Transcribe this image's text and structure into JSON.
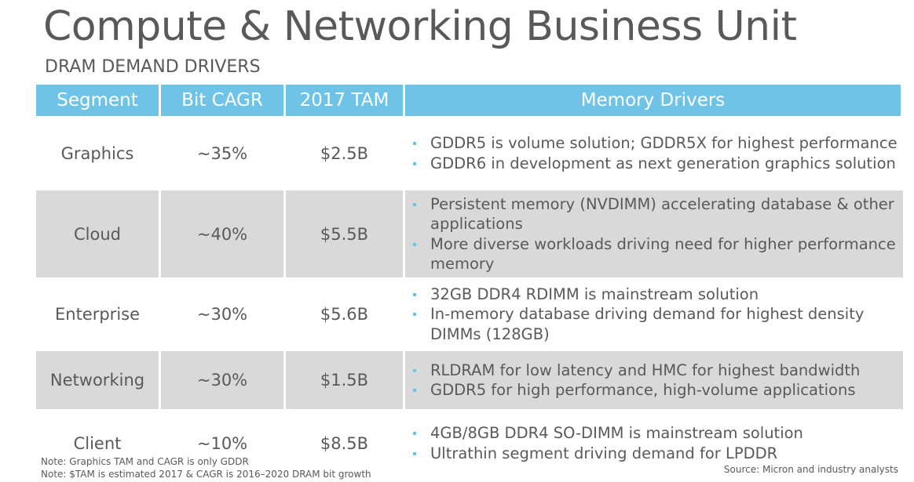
{
  "header": {
    "title": "Compute & Networking Business Unit",
    "subtitle": "DRAM DEMAND DRIVERS"
  },
  "table": {
    "columns": [
      "Segment",
      "Bit CAGR",
      "2017 TAM",
      "Memory Drivers"
    ],
    "rows": [
      {
        "segment": "Graphics",
        "cagr": "~35%",
        "tam": "$2.5B",
        "drivers": [
          "GDDR5 is volume solution; GDDR5X for highest performance",
          "GDDR6 in development as next generation graphics solution"
        ]
      },
      {
        "segment": "Cloud",
        "cagr": "~40%",
        "tam": "$5.5B",
        "drivers": [
          "Persistent memory (NVDIMM) accelerating database & other applications",
          "More diverse workloads driving need for higher performance memory"
        ]
      },
      {
        "segment": "Enterprise",
        "cagr": "~30%",
        "tam": "$5.6B",
        "drivers": [
          "32GB DDR4 RDIMM is mainstream solution",
          "In-memory database driving demand for highest density DIMMs (128GB)"
        ]
      },
      {
        "segment": "Networking",
        "cagr": "~30%",
        "tam": "$1.5B",
        "drivers": [
          "RLDRAM for low latency and HMC for highest bandwidth",
          "GDDR5 for high performance, high-volume applications"
        ]
      },
      {
        "segment": "Client",
        "cagr": "~10%",
        "tam": "$8.5B",
        "drivers": [
          "4GB/8GB DDR4 SO-DIMM is mainstream solution",
          "Ultrathin segment driving demand for LPDDR"
        ]
      }
    ]
  },
  "footer": {
    "notes": [
      "Note: Graphics TAM and CAGR is only GDDR",
      "Note: $TAM is estimated 2017 & CAGR is 2016–2020 DRAM bit growth"
    ],
    "source": "Source: Micron and industry analysts"
  },
  "colors": {
    "header_fill": "#6ec3e6",
    "shaded_row": "#d9d9d9",
    "text": "#595959"
  }
}
